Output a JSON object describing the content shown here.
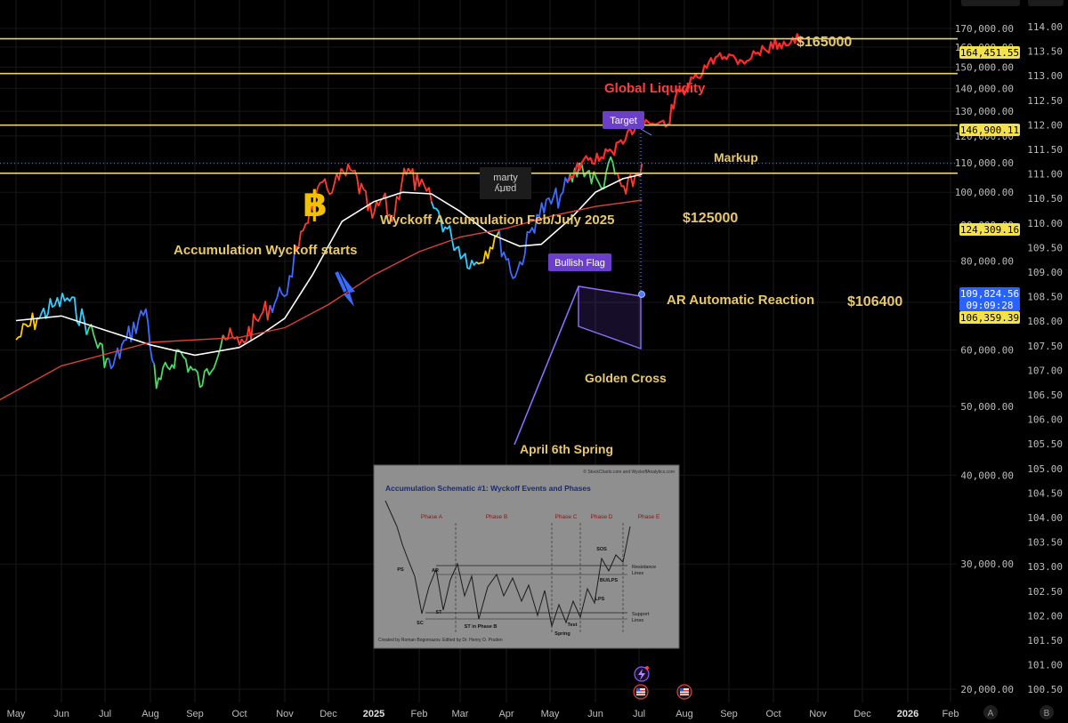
{
  "chart_data": {
    "type": "line",
    "title": "",
    "x_ticks": [
      "May",
      "Jun",
      "Jul",
      "Aug",
      "Sep",
      "Oct",
      "Nov",
      "Dec",
      "2025",
      "Feb",
      "Mar",
      "Apr",
      "May",
      "Jun",
      "Jul",
      "Aug",
      "Sep",
      "Oct",
      "Nov",
      "Dec",
      "2026",
      "Feb"
    ],
    "left_axis": {
      "scale": "log",
      "ticks": [
        "170,000.00",
        "160,000.00",
        "150,000.00",
        "140,000.00",
        "130,000.00",
        "120,000.00",
        "110,000.00",
        "100,000.00",
        "90,000.00",
        "80,000.00",
        "70,000.00",
        "60,000.00",
        "50,000.00",
        "40,000.00",
        "30,000.00",
        "20,000.00"
      ]
    },
    "right_axis": {
      "ticks": [
        "114.00",
        "113.50",
        "113.00",
        "112.50",
        "112.00",
        "111.50",
        "111.00",
        "110.50",
        "110.00",
        "109.50",
        "109.00",
        "108.50",
        "108.00",
        "107.50",
        "107.00",
        "106.50",
        "106.00",
        "105.50",
        "105.00",
        "104.50",
        "104.00",
        "103.50",
        "103.00",
        "102.50",
        "102.00",
        "101.50",
        "101.00",
        "100.50"
      ]
    },
    "price_labels": [
      {
        "text": "164,451.55",
        "kind": "yellow",
        "value": 164451.55
      },
      {
        "text": "146,900.11",
        "kind": "yellow",
        "value": 146900.11
      },
      {
        "text": "124,309.16",
        "kind": "yellow",
        "value": 124309.16
      },
      {
        "text": "109,824.56",
        "kind": "blue",
        "value": 109824.56
      },
      {
        "text": "09:09:28",
        "kind": "blue"
      },
      {
        "text": "106,359.39",
        "kind": "yellow",
        "value": 106359.39
      }
    ],
    "series": [
      {
        "role": "btc-price",
        "colors": [
          "#ff3b30",
          "#3d6bff",
          "#4cd964",
          "#ffcc00",
          "#2ecfff"
        ],
        "points": [
          [
            "2024-05-01",
            62000
          ],
          [
            "2024-05-15",
            66500
          ],
          [
            "2024-05-25",
            69000
          ],
          [
            "2024-06-05",
            71000
          ],
          [
            "2024-06-20",
            64500
          ],
          [
            "2024-07-05",
            56500
          ],
          [
            "2024-07-15",
            62000
          ],
          [
            "2024-07-28",
            68500
          ],
          [
            "2024-08-05",
            53000
          ],
          [
            "2024-08-20",
            60000
          ],
          [
            "2024-09-06",
            53500
          ],
          [
            "2024-09-20",
            63000
          ],
          [
            "2024-10-01",
            61000
          ],
          [
            "2024-10-15",
            67000
          ],
          [
            "2024-10-29",
            72000
          ],
          [
            "2024-11-06",
            76000
          ],
          [
            "2024-11-12",
            88000
          ],
          [
            "2024-11-22",
            98500
          ],
          [
            "2024-12-05",
            103000
          ],
          [
            "2024-12-17",
            107000
          ],
          [
            "2024-12-30",
            92000
          ],
          [
            "2025-01-07",
            98000
          ],
          [
            "2025-01-13",
            91000
          ],
          [
            "2025-01-21",
            108000
          ],
          [
            "2025-01-31",
            102000
          ],
          [
            "2025-02-10",
            97000
          ],
          [
            "2025-02-25",
            86000
          ],
          [
            "2025-03-10",
            79000
          ],
          [
            "2025-03-25",
            87000
          ],
          [
            "2025-04-07",
            76000
          ],
          [
            "2025-04-22",
            93000
          ],
          [
            "2025-05-08",
            99000
          ],
          [
            "2025-05-22",
            109500
          ],
          [
            "2025-06-05",
            101500
          ],
          [
            "2025-06-10",
            110000
          ],
          [
            "2025-06-22",
            99500
          ],
          [
            "2025-07-03",
            109800
          ]
        ]
      },
      {
        "role": "global-liquidity",
        "color": "#ff2a2a",
        "points": [
          [
            "2025-05-12",
            104000
          ],
          [
            "2025-05-22",
            110000
          ],
          [
            "2025-06-05",
            112000
          ],
          [
            "2025-06-20",
            117000
          ],
          [
            "2025-07-01",
            127000
          ],
          [
            "2025-07-10",
            125000
          ],
          [
            "2025-07-20",
            124500
          ],
          [
            "2025-07-25",
            136000
          ],
          [
            "2025-08-10",
            145000
          ],
          [
            "2025-08-25",
            157000
          ],
          [
            "2025-09-10",
            153000
          ],
          [
            "2025-09-25",
            159000
          ],
          [
            "2025-10-05",
            162000
          ],
          [
            "2025-10-20",
            164500
          ]
        ]
      },
      {
        "role": "ma-50",
        "color": "#ffffff",
        "points": [
          [
            "2024-05-01",
            66000
          ],
          [
            "2024-06-01",
            67000
          ],
          [
            "2024-07-01",
            64000
          ],
          [
            "2024-08-01",
            61000
          ],
          [
            "2024-09-01",
            59000
          ],
          [
            "2024-10-01",
            60500
          ],
          [
            "2024-10-15",
            63000
          ],
          [
            "2024-11-01",
            66500
          ],
          [
            "2024-11-20",
            76500
          ],
          [
            "2024-12-10",
            91000
          ],
          [
            "2025-01-01",
            97000
          ],
          [
            "2025-01-20",
            100000
          ],
          [
            "2025-02-10",
            99500
          ],
          [
            "2025-03-01",
            94000
          ],
          [
            "2025-03-20",
            87500
          ],
          [
            "2025-04-10",
            84000
          ],
          [
            "2025-04-25",
            84500
          ],
          [
            "2025-05-15",
            92000
          ],
          [
            "2025-06-01",
            100000
          ],
          [
            "2025-06-20",
            104500
          ],
          [
            "2025-07-03",
            106000
          ]
        ]
      },
      {
        "role": "ma-200",
        "color": "#d9413a",
        "points": [
          [
            "2024-04-05",
            49000
          ],
          [
            "2024-06-01",
            57000
          ],
          [
            "2024-08-01",
            61500
          ],
          [
            "2024-10-01",
            62500
          ],
          [
            "2024-11-01",
            64500
          ],
          [
            "2024-12-01",
            69500
          ],
          [
            "2025-01-01",
            76500
          ],
          [
            "2025-02-01",
            82500
          ],
          [
            "2025-03-01",
            86500
          ],
          [
            "2025-04-01",
            89000
          ],
          [
            "2025-05-01",
            92500
          ],
          [
            "2025-06-01",
            95500
          ],
          [
            "2025-07-03",
            97500
          ]
        ]
      }
    ],
    "annotations": [
      {
        "text": "$165000",
        "color": "#e8c86a"
      },
      {
        "text": "Global Liquidity",
        "color": "#ff3b3b"
      },
      {
        "text": "Target",
        "kind": "badge"
      },
      {
        "text": "Markup",
        "color": "#e8c86a"
      },
      {
        "text": "Wyckoff Accumulation Feb/July 2025",
        "color": "#e8c86a"
      },
      {
        "text": "$125000",
        "color": "#e8c86a"
      },
      {
        "text": "Accumulation Wyckoff starts",
        "color": "#e8c86a"
      },
      {
        "text": "Bullish Flag",
        "kind": "badge"
      },
      {
        "text": "AR Automatic Reaction",
        "color": "#e8c86a"
      },
      {
        "text": "$106400",
        "color": "#e8c86a"
      },
      {
        "text": "Golden Cross",
        "color": "#e8c86a"
      },
      {
        "text": "April 6th Spring",
        "color": "#e8c86a"
      }
    ],
    "logo_text": [
      "marty",
      "party"
    ],
    "inset": {
      "credit_top": "© StockCharts.com and WyckoffAnalytics.com",
      "title": "Accumulation Schematic #1: Wyckoff Events and Phases",
      "phases": [
        "Phase A",
        "Phase B",
        "Phase C",
        "Phase D",
        "Phase E"
      ],
      "events": [
        "PS",
        "SC",
        "AR",
        "ST",
        "ST in Phase B",
        "Spring",
        "Test",
        "LPS",
        "BU/LPS",
        "SOS"
      ],
      "side_labels": [
        "Resistance",
        "Lines",
        "Support",
        "Lines"
      ],
      "credit_bottom": "Created by Roman Bogomazov. Edited by Dr. Henry O. Pruden"
    },
    "bottom_right_labels": [
      "A",
      "B"
    ]
  }
}
